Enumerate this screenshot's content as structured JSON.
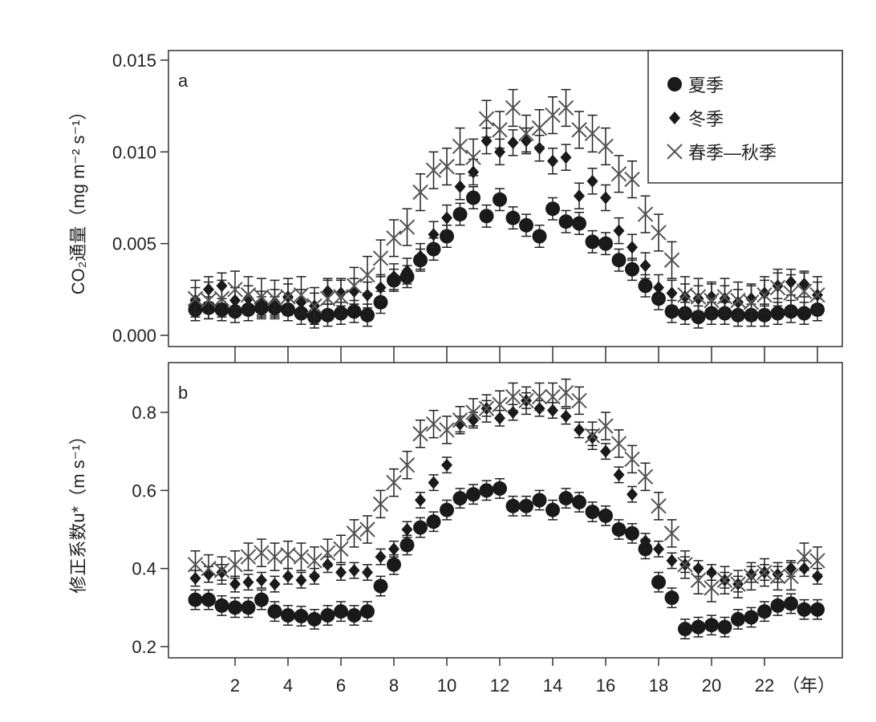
{
  "chart_data": [
    {
      "type": "scatter",
      "panel_label": "a",
      "ylabel": "CO₂通量（mg m⁻² s⁻¹）",
      "ylim": [
        0,
        0.015
      ],
      "yticks": [
        "0.000",
        "0.005",
        "0.010",
        "0.015"
      ],
      "ytick_values": [
        0,
        0.005,
        0.01,
        0.015
      ],
      "xlim": [
        0,
        24.9
      ],
      "xticks": [
        "2",
        "4",
        "6",
        "8",
        "10",
        "12",
        "14",
        "16",
        "18",
        "20",
        "22"
      ],
      "xtick_values": [
        2,
        4,
        6,
        8,
        10,
        12,
        14,
        16,
        18,
        20,
        22
      ],
      "legend_position": "top-right",
      "series": [
        {
          "name": "夏季",
          "marker": "circle",
          "err": 0.0006,
          "values": [
            0.0014,
            0.0015,
            0.0014,
            0.0013,
            0.0014,
            0.0015,
            0.0015,
            0.0014,
            0.0012,
            0.001,
            0.0011,
            0.0012,
            0.0013,
            0.0011,
            0.0018,
            0.003,
            0.0032,
            0.0041,
            0.0047,
            0.0054,
            0.0066,
            0.0075,
            0.0065,
            0.0074,
            0.0064,
            0.006,
            0.0054,
            0.0069,
            0.0062,
            0.0061,
            0.0051,
            0.005,
            0.0041,
            0.0036,
            0.0027,
            0.002,
            0.0013,
            0.0012,
            0.001,
            0.0012,
            0.0012,
            0.0011,
            0.0011,
            0.0011,
            0.0012,
            0.0013,
            0.0012,
            0.0014
          ]
        },
        {
          "name": "冬季",
          "marker": "diamond",
          "err": 0.0007,
          "values": [
            0.0019,
            0.0025,
            0.0027,
            0.0019,
            0.002,
            0.0017,
            0.0018,
            0.0021,
            0.0018,
            0.0016,
            0.0024,
            0.0023,
            0.0024,
            0.0022,
            0.0026,
            0.0032,
            0.0035,
            0.0043,
            0.0055,
            0.0064,
            0.0081,
            0.0089,
            0.0106,
            0.01,
            0.0105,
            0.0106,
            0.0102,
            0.0095,
            0.0097,
            0.0076,
            0.0084,
            0.0075,
            0.0057,
            0.0048,
            0.0038,
            0.0026,
            0.0023,
            0.0021,
            0.002,
            0.0021,
            0.002,
            0.0018,
            0.002,
            0.0023,
            0.0027,
            0.0029,
            0.0028,
            0.0022
          ]
        },
        {
          "name": "春季—秋季",
          "marker": "x",
          "err": 0.001,
          "values": [
            0.002,
            0.0019,
            0.002,
            0.0025,
            0.0022,
            0.0021,
            0.002,
            0.0021,
            0.0022,
            0.0016,
            0.002,
            0.0021,
            0.0027,
            0.0033,
            0.0042,
            0.0053,
            0.0059,
            0.0078,
            0.009,
            0.0092,
            0.0103,
            0.0097,
            0.0118,
            0.0112,
            0.0124,
            0.011,
            0.0113,
            0.012,
            0.0124,
            0.0112,
            0.011,
            0.0103,
            0.0088,
            0.0085,
            0.0066,
            0.0056,
            0.0041,
            0.0022,
            0.0021,
            0.0019,
            0.0021,
            0.0019,
            0.0018,
            0.0022,
            0.0026,
            0.0023,
            0.0024,
            0.0022
          ]
        }
      ]
    },
    {
      "type": "scatter",
      "panel_label": "b",
      "ylabel": "修正系数u*（m s⁻¹）",
      "ylim": [
        0.17,
        0.92
      ],
      "yticks": [
        "0.2",
        "0.4",
        "0.6",
        "0.8"
      ],
      "ytick_values": [
        0.2,
        0.4,
        0.6,
        0.8
      ],
      "xlim": [
        0,
        24.9
      ],
      "xticks": [
        "2",
        "4",
        "6",
        "8",
        "10",
        "12",
        "14",
        "16",
        "18",
        "20",
        "22"
      ],
      "xtick_values": [
        2,
        4,
        6,
        8,
        10,
        12,
        14,
        16,
        18,
        20,
        22
      ],
      "xlabel": "（年）",
      "series": [
        {
          "name": "夏季",
          "marker": "circle",
          "err": 0.025,
          "values": [
            0.32,
            0.32,
            0.305,
            0.3,
            0.3,
            0.32,
            0.29,
            0.28,
            0.278,
            0.27,
            0.28,
            0.29,
            0.28,
            0.29,
            0.355,
            0.41,
            0.46,
            0.505,
            0.52,
            0.55,
            0.58,
            0.59,
            0.6,
            0.605,
            0.56,
            0.56,
            0.575,
            0.55,
            0.58,
            0.57,
            0.545,
            0.535,
            0.5,
            0.49,
            0.45,
            0.365,
            0.325,
            0.245,
            0.25,
            0.255,
            0.25,
            0.27,
            0.275,
            0.29,
            0.305,
            0.31,
            0.295,
            0.295
          ]
        },
        {
          "name": "冬季",
          "marker": "diamond",
          "err": 0.02,
          "values": [
            0.375,
            0.385,
            0.39,
            0.36,
            0.365,
            0.37,
            0.36,
            0.38,
            0.37,
            0.38,
            0.41,
            0.39,
            0.395,
            0.39,
            0.43,
            0.45,
            0.5,
            0.575,
            0.62,
            0.665,
            0.77,
            0.78,
            0.81,
            0.785,
            0.8,
            0.83,
            0.81,
            0.805,
            0.79,
            0.755,
            0.735,
            0.7,
            0.64,
            0.59,
            0.47,
            0.45,
            0.42,
            0.41,
            0.4,
            0.39,
            0.37,
            0.36,
            0.385,
            0.39,
            0.385,
            0.4,
            0.4,
            0.38
          ]
        },
        {
          "name": "春季—秋季",
          "marker": "x",
          "err": 0.035,
          "values": [
            0.41,
            0.4,
            0.395,
            0.41,
            0.43,
            0.44,
            0.43,
            0.435,
            0.43,
            0.42,
            0.44,
            0.45,
            0.49,
            0.5,
            0.565,
            0.62,
            0.665,
            0.745,
            0.77,
            0.755,
            0.78,
            0.8,
            0.81,
            0.82,
            0.84,
            0.83,
            0.84,
            0.84,
            0.85,
            0.83,
            0.74,
            0.765,
            0.72,
            0.68,
            0.635,
            0.56,
            0.49,
            0.41,
            0.37,
            0.35,
            0.37,
            0.36,
            0.38,
            0.39,
            0.38,
            0.38,
            0.43,
            0.42
          ]
        }
      ]
    }
  ],
  "x_values_start": 0.5,
  "x_values_step": 0.5
}
